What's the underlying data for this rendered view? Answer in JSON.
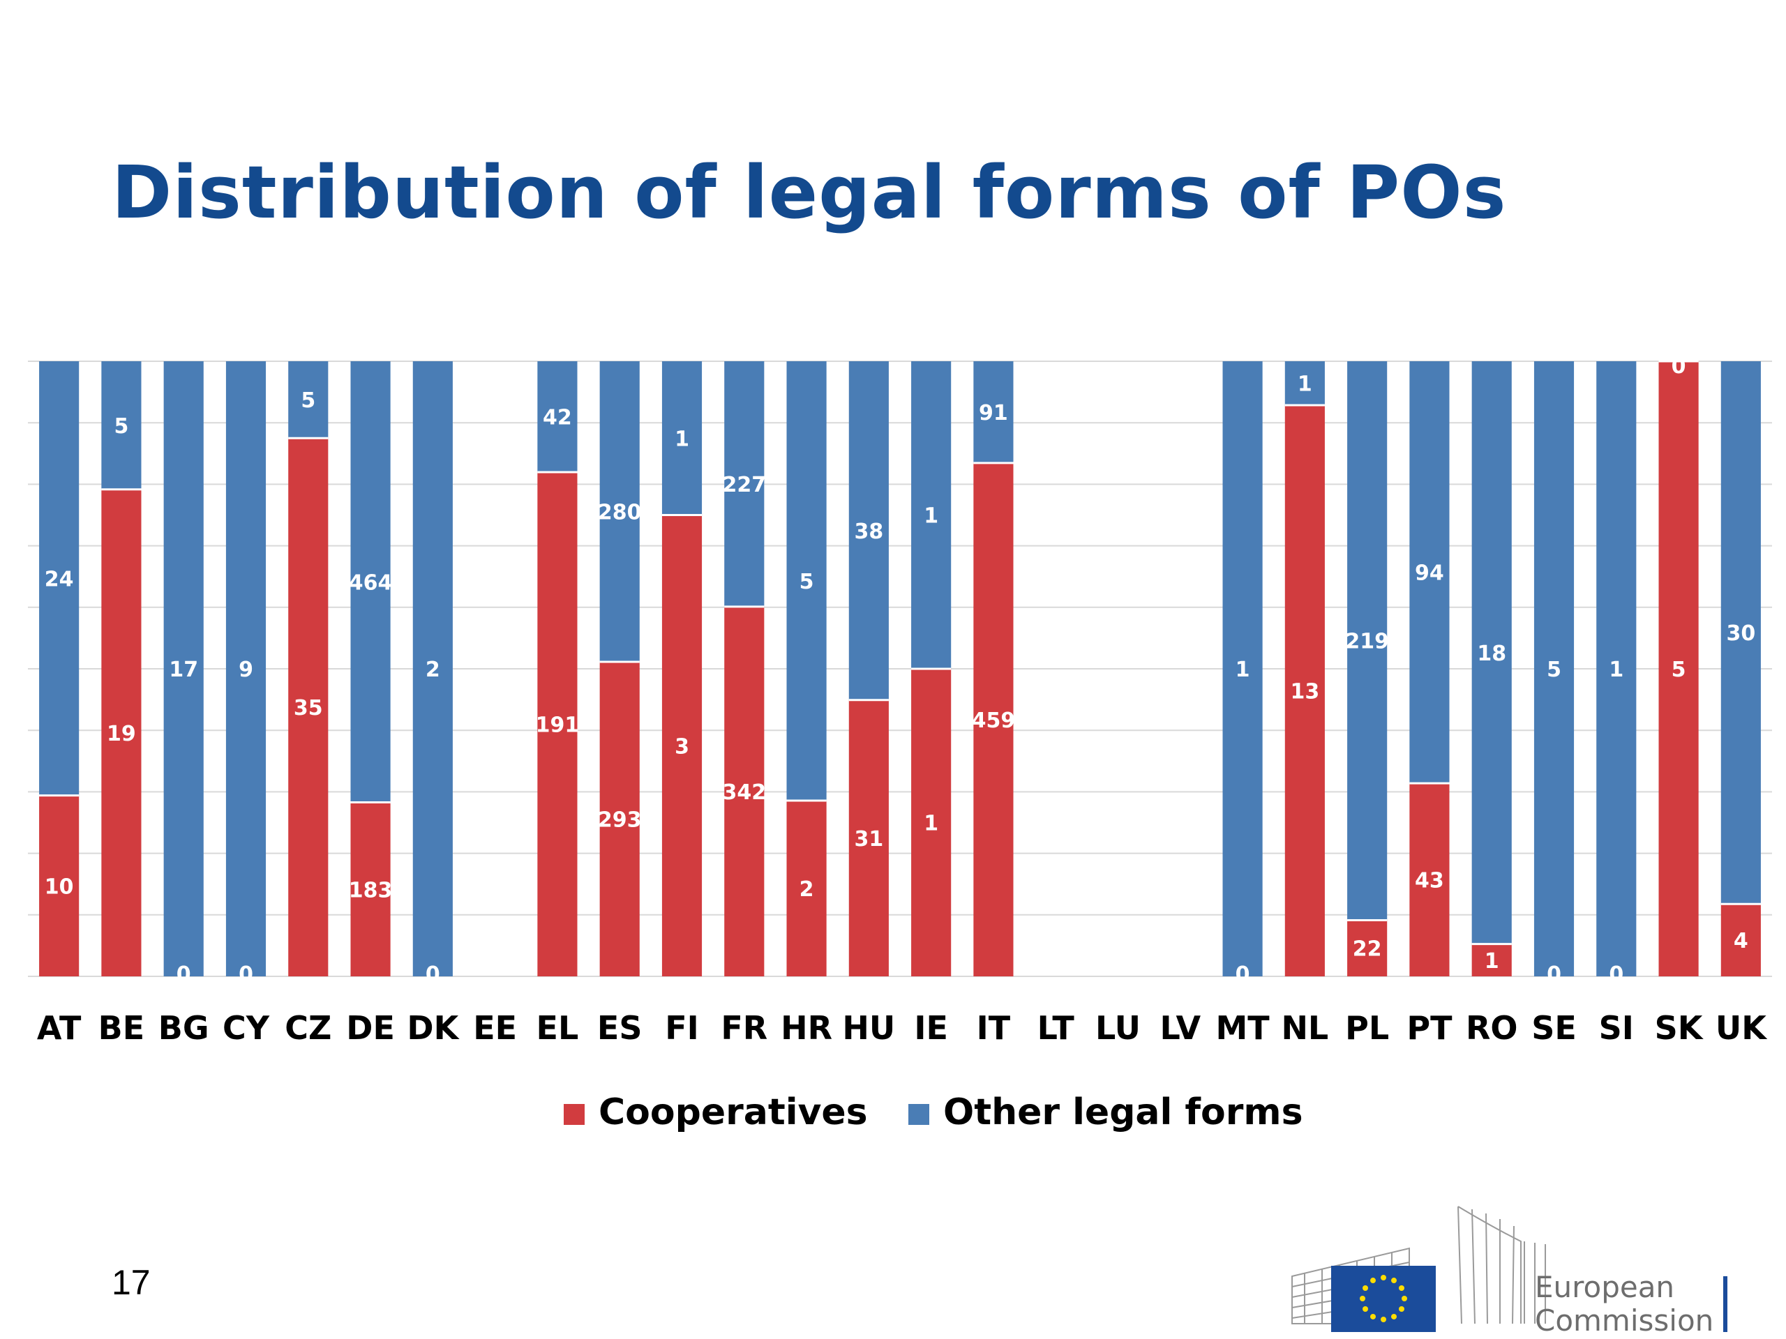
{
  "slide": {
    "title": "Distribution of legal forms of POs",
    "page_number": "17",
    "logo_text_line1": "European",
    "logo_text_line2": "Commission"
  },
  "colors": {
    "cooperatives": "#d13c3f",
    "other": "#4a7db5",
    "title": "#134a8e",
    "grid": "#d9d9d9"
  },
  "chart_data": {
    "type": "bar",
    "stacked": "percent",
    "categories": [
      "AT",
      "BE",
      "BG",
      "CY",
      "CZ",
      "DE",
      "DK",
      "EE",
      "EL",
      "ES",
      "FI",
      "FR",
      "HR",
      "HU",
      "IE",
      "IT",
      "LT",
      "LU",
      "LV",
      "MT",
      "NL",
      "PL",
      "PT",
      "RO",
      "SE",
      "SI",
      "SK",
      "UK"
    ],
    "series": [
      {
        "name": "Cooperatives",
        "values": [
          10,
          19,
          0,
          0,
          35,
          183,
          0,
          0,
          191,
          293,
          3,
          342,
          2,
          31,
          1,
          459,
          0,
          0,
          0,
          0,
          13,
          22,
          43,
          1,
          0,
          0,
          5,
          4
        ]
      },
      {
        "name": "Other legal forms",
        "values": [
          24,
          5,
          17,
          9,
          5,
          464,
          2,
          0,
          42,
          280,
          1,
          227,
          5,
          38,
          1,
          91,
          0,
          0,
          0,
          1,
          1,
          219,
          94,
          18,
          5,
          1,
          0,
          30
        ]
      }
    ],
    "ylim": [
      0,
      100
    ],
    "grid": true,
    "legend_position": "bottom"
  }
}
